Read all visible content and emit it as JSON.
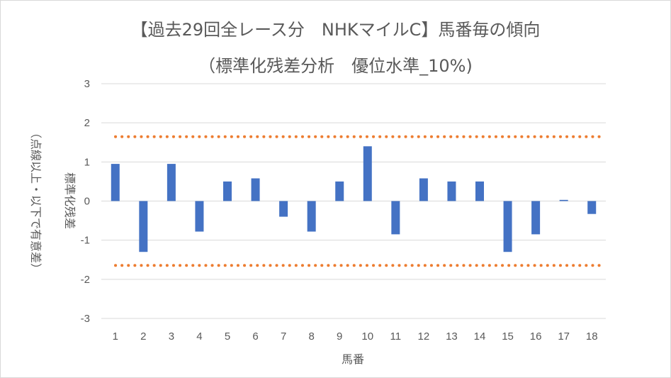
{
  "chart_data": {
    "type": "bar",
    "title": "【過去29回全レース分　NHKマイルC】馬番毎の傾向",
    "subtitle": "（標準化残差分析　優位水準_10%)",
    "xlabel": "馬番",
    "ylabel_main": "標準化残差",
    "ylabel_note": "（点線以上・以下で有意差）",
    "categories": [
      "1",
      "2",
      "3",
      "4",
      "5",
      "6",
      "7",
      "8",
      "9",
      "10",
      "11",
      "12",
      "13",
      "14",
      "15",
      "16",
      "17",
      "18"
    ],
    "values": [
      0.95,
      -1.3,
      0.95,
      -0.78,
      0.5,
      0.58,
      -0.4,
      -0.78,
      0.5,
      1.4,
      -0.85,
      0.58,
      0.5,
      0.5,
      -1.3,
      -0.85,
      0.03,
      -0.33
    ],
    "ylim": [
      -3,
      3
    ],
    "yticks": [
      3,
      2,
      1,
      0,
      -1,
      -2,
      -3
    ],
    "threshold_lines": [
      1.645,
      -1.645
    ],
    "grid": true,
    "legend": "none",
    "bar_color": "#4472c4",
    "threshold_color": "#ed7d31"
  }
}
